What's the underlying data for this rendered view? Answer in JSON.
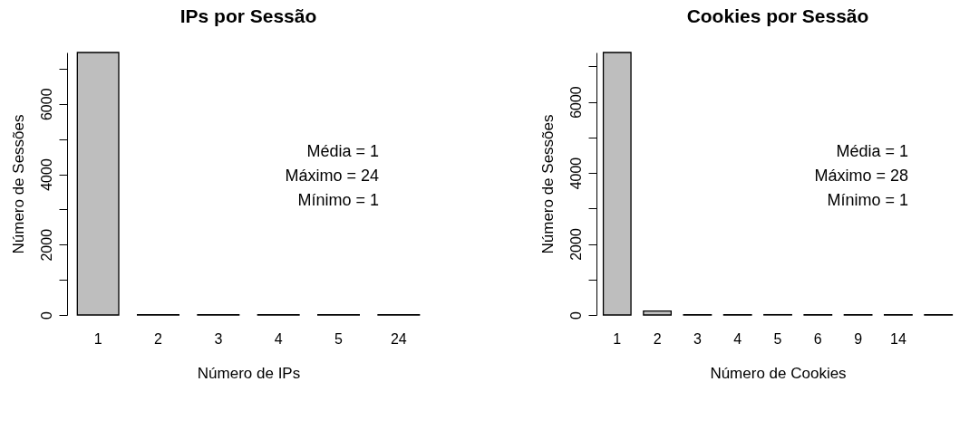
{
  "chart_data": [
    {
      "type": "bar",
      "title": "IPs por Sessão",
      "xlabel": "Número de IPs",
      "ylabel": "Número de Sessões",
      "categories": [
        "1",
        "2",
        "3",
        "4",
        "5",
        "24"
      ],
      "values": [
        7460,
        10,
        10,
        10,
        10,
        10
      ],
      "color": "#bebebe",
      "ylim": [
        0,
        7460
      ],
      "yticks": [
        0,
        {
          "value": 1000,
          "label": null
        },
        2000,
        {
          "value": 3000,
          "label": null
        },
        4000,
        {
          "value": 5000,
          "label": null
        },
        6000,
        {
          "value": 7000,
          "label": null
        }
      ],
      "grid": false,
      "annotations": [
        "Média = 1",
        "Máximo = 24",
        "Mínimo = 1"
      ]
    },
    {
      "type": "bar",
      "title": "Cookies por Sessão",
      "xlabel": "Número de Cookies",
      "ylabel": "Número de Sessões",
      "categories": [
        "1",
        "2",
        "3",
        "4",
        "5",
        "6",
        "9",
        "14",
        null
      ],
      "values": [
        7390,
        110,
        10,
        10,
        10,
        10,
        10,
        10,
        10
      ],
      "color": "#bebebe",
      "ylim": [
        0,
        7390
      ],
      "yticks": [
        0,
        {
          "value": 1000,
          "label": null
        },
        2000,
        {
          "value": 3000,
          "label": null
        },
        4000,
        {
          "value": 5000,
          "label": null
        },
        6000,
        {
          "value": 7000,
          "label": null
        }
      ],
      "grid": false,
      "annotations": [
        "Média = 1",
        "Máximo = 28",
        "Mínimo = 1"
      ]
    }
  ]
}
